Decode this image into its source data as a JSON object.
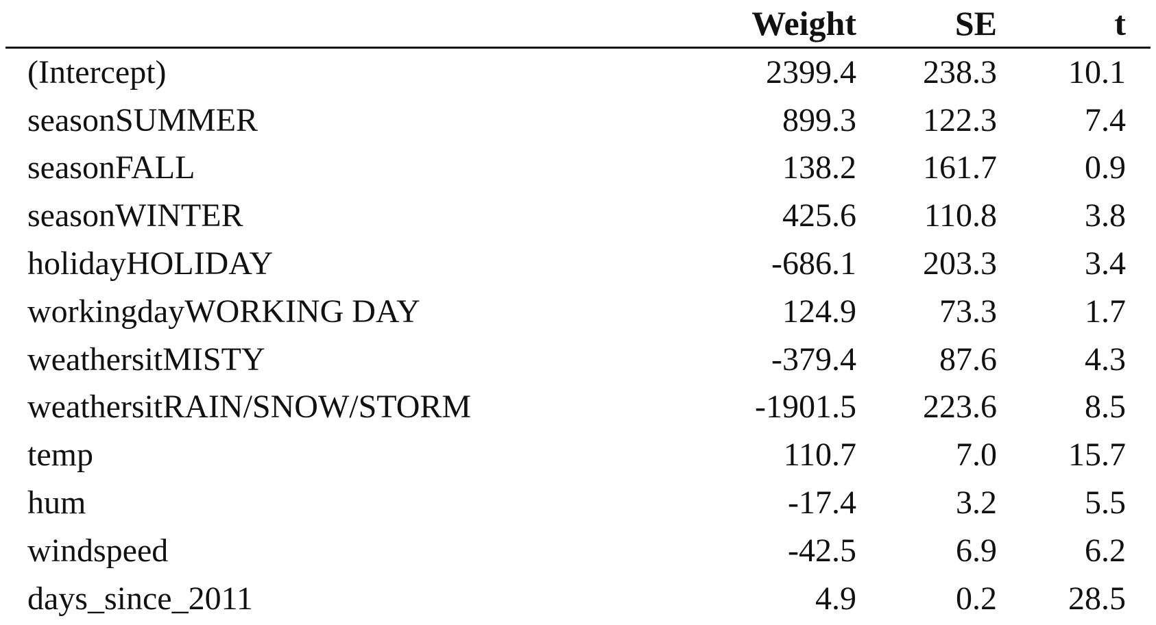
{
  "table": {
    "headers": {
      "term": "",
      "weight": "Weight",
      "se": "SE",
      "t": "t"
    },
    "rows": [
      {
        "term": "(Intercept)",
        "weight": "2399.4",
        "se": "238.3",
        "t": "10.1"
      },
      {
        "term": "seasonSUMMER",
        "weight": "899.3",
        "se": "122.3",
        "t": "7.4"
      },
      {
        "term": "seasonFALL",
        "weight": "138.2",
        "se": "161.7",
        "t": "0.9"
      },
      {
        "term": "seasonWINTER",
        "weight": "425.6",
        "se": "110.8",
        "t": "3.8"
      },
      {
        "term": "holidayHOLIDAY",
        "weight": "-686.1",
        "se": "203.3",
        "t": "3.4"
      },
      {
        "term": "workingdayWORKING DAY",
        "weight": "124.9",
        "se": "73.3",
        "t": "1.7"
      },
      {
        "term": "weathersitMISTY",
        "weight": "-379.4",
        "se": "87.6",
        "t": "4.3"
      },
      {
        "term": "weathersitRAIN/SNOW/STORM",
        "weight": "-1901.5",
        "se": "223.6",
        "t": "8.5"
      },
      {
        "term": "temp",
        "weight": "110.7",
        "se": "7.0",
        "t": "15.7"
      },
      {
        "term": "hum",
        "weight": "-17.4",
        "se": "3.2",
        "t": "5.5"
      },
      {
        "term": "windspeed",
        "weight": "-42.5",
        "se": "6.9",
        "t": "6.2"
      },
      {
        "term": "days_since_2011",
        "weight": "4.9",
        "se": "0.2",
        "t": "28.5"
      }
    ]
  },
  "colors": {
    "text": "#111111",
    "rule": "#111111",
    "background": "#ffffff"
  }
}
